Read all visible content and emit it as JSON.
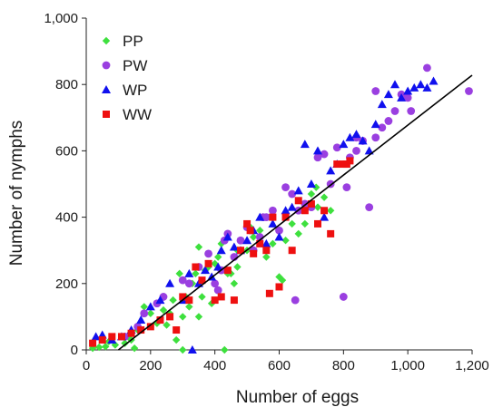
{
  "chart_data": {
    "type": "scatter",
    "xlabel": "Number of eggs",
    "ylabel": "Number of nymphs",
    "xlim": [
      0,
      1200
    ],
    "ylim": [
      0,
      1000
    ],
    "x_ticks": [
      0,
      200,
      400,
      600,
      800,
      1000,
      1200
    ],
    "y_ticks": [
      0,
      200,
      400,
      600,
      800,
      1000
    ],
    "x_tick_labels": [
      "0",
      "200",
      "400",
      "600",
      "800",
      "1,000",
      "1,200"
    ],
    "y_tick_labels": [
      "0",
      "200",
      "400",
      "600",
      "800",
      "1,000"
    ],
    "grid": false,
    "legend_position": "top-left",
    "regression_line": {
      "x": [
        100,
        1200
      ],
      "y": [
        0,
        828
      ],
      "color": "#000000"
    },
    "series": [
      {
        "name": "PP",
        "marker": "diamond",
        "color": "#3ee03e",
        "points": [
          [
            20,
            5
          ],
          [
            40,
            8
          ],
          [
            60,
            10
          ],
          [
            70,
            25
          ],
          [
            90,
            15
          ],
          [
            120,
            20
          ],
          [
            140,
            30
          ],
          [
            150,
            5
          ],
          [
            160,
            60
          ],
          [
            180,
            130
          ],
          [
            200,
            110
          ],
          [
            220,
            80
          ],
          [
            240,
            120
          ],
          [
            260,
            110
          ],
          [
            270,
            150
          ],
          [
            280,
            30
          ],
          [
            290,
            230
          ],
          [
            300,
            100
          ],
          [
            310,
            160
          ],
          [
            320,
            130
          ],
          [
            330,
            200
          ],
          [
            340,
            230
          ],
          [
            350,
            100
          ],
          [
            360,
            160
          ],
          [
            370,
            240
          ],
          [
            380,
            250
          ],
          [
            390,
            140
          ],
          [
            400,
            260
          ],
          [
            410,
            280
          ],
          [
            420,
            320
          ],
          [
            440,
            230
          ],
          [
            450,
            230
          ],
          [
            470,
            250
          ],
          [
            480,
            300
          ],
          [
            500,
            300
          ],
          [
            520,
            340
          ],
          [
            540,
            360
          ],
          [
            560,
            280
          ],
          [
            580,
            320
          ],
          [
            600,
            220
          ],
          [
            620,
            330
          ],
          [
            640,
            380
          ],
          [
            660,
            350
          ],
          [
            680,
            380
          ],
          [
            700,
            470
          ],
          [
            720,
            430
          ],
          [
            740,
            460
          ],
          [
            760,
            420
          ],
          [
            300,
            0
          ],
          [
            430,
            0
          ],
          [
            130,
            40
          ],
          [
            250,
            75
          ],
          [
            350,
            310
          ],
          [
            460,
            200
          ],
          [
            510,
            370
          ],
          [
            570,
            400
          ],
          [
            610,
            210
          ],
          [
            690,
            430
          ],
          [
            715,
            490
          ],
          [
            470,
            300
          ]
        ]
      },
      {
        "name": "PW",
        "marker": "circle",
        "color": "#9a3fe0",
        "points": [
          [
            120,
            40
          ],
          [
            160,
            70
          ],
          [
            180,
            110
          ],
          [
            220,
            140
          ],
          [
            240,
            160
          ],
          [
            300,
            210
          ],
          [
            320,
            200
          ],
          [
            350,
            250
          ],
          [
            380,
            290
          ],
          [
            400,
            200
          ],
          [
            410,
            180
          ],
          [
            420,
            240
          ],
          [
            430,
            330
          ],
          [
            440,
            350
          ],
          [
            460,
            280
          ],
          [
            480,
            330
          ],
          [
            500,
            370
          ],
          [
            520,
            300
          ],
          [
            540,
            340
          ],
          [
            560,
            400
          ],
          [
            580,
            420
          ],
          [
            600,
            360
          ],
          [
            620,
            490
          ],
          [
            640,
            470
          ],
          [
            650,
            150
          ],
          [
            660,
            420
          ],
          [
            680,
            440
          ],
          [
            700,
            430
          ],
          [
            720,
            580
          ],
          [
            740,
            590
          ],
          [
            760,
            500
          ],
          [
            780,
            610
          ],
          [
            800,
            160
          ],
          [
            810,
            490
          ],
          [
            820,
            580
          ],
          [
            840,
            600
          ],
          [
            860,
            630
          ],
          [
            880,
            430
          ],
          [
            900,
            640
          ],
          [
            920,
            670
          ],
          [
            940,
            690
          ],
          [
            960,
            720
          ],
          [
            980,
            770
          ],
          [
            1000,
            760
          ],
          [
            1010,
            720
          ],
          [
            1060,
            850
          ],
          [
            1190,
            780
          ],
          [
            900,
            780
          ],
          [
            840,
            640
          ],
          [
            550,
            400
          ]
        ]
      },
      {
        "name": "WP",
        "marker": "triangle",
        "color": "#1010ee",
        "points": [
          [
            30,
            40
          ],
          [
            50,
            45
          ],
          [
            80,
            30
          ],
          [
            110,
            40
          ],
          [
            140,
            60
          ],
          [
            170,
            90
          ],
          [
            200,
            130
          ],
          [
            230,
            150
          ],
          [
            260,
            200
          ],
          [
            300,
            150
          ],
          [
            320,
            230
          ],
          [
            330,
            0
          ],
          [
            350,
            200
          ],
          [
            370,
            240
          ],
          [
            390,
            220
          ],
          [
            410,
            250
          ],
          [
            420,
            300
          ],
          [
            440,
            340
          ],
          [
            460,
            310
          ],
          [
            480,
            300
          ],
          [
            500,
            330
          ],
          [
            520,
            360
          ],
          [
            540,
            400
          ],
          [
            560,
            320
          ],
          [
            580,
            380
          ],
          [
            600,
            340
          ],
          [
            620,
            420
          ],
          [
            640,
            430
          ],
          [
            660,
            480
          ],
          [
            680,
            620
          ],
          [
            700,
            500
          ],
          [
            720,
            600
          ],
          [
            740,
            400
          ],
          [
            760,
            540
          ],
          [
            780,
            560
          ],
          [
            800,
            620
          ],
          [
            820,
            640
          ],
          [
            840,
            650
          ],
          [
            860,
            630
          ],
          [
            880,
            600
          ],
          [
            900,
            680
          ],
          [
            920,
            740
          ],
          [
            940,
            770
          ],
          [
            960,
            800
          ],
          [
            980,
            760
          ],
          [
            1000,
            780
          ],
          [
            1020,
            790
          ],
          [
            1040,
            800
          ],
          [
            1060,
            790
          ],
          [
            1080,
            810
          ]
        ]
      },
      {
        "name": "WW",
        "marker": "square",
        "color": "#ee1010",
        "points": [
          [
            20,
            20
          ],
          [
            50,
            30
          ],
          [
            80,
            40
          ],
          [
            110,
            40
          ],
          [
            140,
            50
          ],
          [
            170,
            60
          ],
          [
            200,
            70
          ],
          [
            230,
            90
          ],
          [
            260,
            100
          ],
          [
            280,
            60
          ],
          [
            300,
            160
          ],
          [
            320,
            150
          ],
          [
            340,
            250
          ],
          [
            360,
            210
          ],
          [
            380,
            260
          ],
          [
            400,
            150
          ],
          [
            420,
            160
          ],
          [
            440,
            240
          ],
          [
            460,
            150
          ],
          [
            480,
            300
          ],
          [
            500,
            380
          ],
          [
            510,
            360
          ],
          [
            520,
            290
          ],
          [
            540,
            320
          ],
          [
            560,
            300
          ],
          [
            570,
            170
          ],
          [
            580,
            400
          ],
          [
            600,
            190
          ],
          [
            620,
            400
          ],
          [
            640,
            300
          ],
          [
            660,
            450
          ],
          [
            680,
            420
          ],
          [
            700,
            440
          ],
          [
            720,
            380
          ],
          [
            740,
            420
          ],
          [
            760,
            350
          ],
          [
            780,
            560
          ],
          [
            800,
            560
          ],
          [
            810,
            560
          ],
          [
            820,
            570
          ]
        ]
      }
    ]
  }
}
